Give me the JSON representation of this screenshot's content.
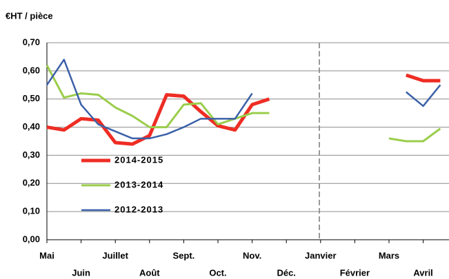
{
  "chart_data": {
    "type": "line",
    "title": "€HT / pièce",
    "categories": [
      "Mai",
      null,
      "Juin",
      null,
      "Juillet",
      null,
      "Août",
      null,
      "Sept.",
      null,
      "Oct.",
      null,
      "Nov.",
      null,
      "Déc.",
      null,
      "Janvier",
      null,
      "Février",
      null,
      "Mars",
      null,
      "Avril",
      null
    ],
    "series": [
      {
        "name": "2014-2015",
        "color": "#ee2d24",
        "values": [
          0.4,
          0.39,
          0.43,
          0.425,
          0.345,
          0.34,
          0.37,
          0.515,
          0.51,
          0.455,
          0.405,
          0.39,
          0.48,
          0.5,
          null,
          null,
          null,
          null,
          null,
          null,
          null,
          0.585,
          0.565,
          0.565
        ]
      },
      {
        "name": "2013-2014",
        "color": "#9acd4a",
        "values": [
          0.62,
          0.505,
          0.52,
          0.515,
          0.47,
          0.44,
          0.4,
          0.4,
          0.48,
          0.485,
          0.41,
          0.43,
          0.45,
          0.45,
          null,
          null,
          null,
          null,
          null,
          null,
          0.36,
          0.35,
          0.35,
          0.395
        ]
      },
      {
        "name": "2012-2013",
        "color": "#3a60a8",
        "values": [
          0.55,
          0.64,
          0.48,
          0.41,
          0.385,
          0.36,
          0.36,
          0.375,
          0.4,
          0.43,
          0.43,
          0.43,
          0.52,
          null,
          null,
          null,
          null,
          null,
          null,
          null,
          null,
          0.525,
          0.475,
          0.55
        ]
      }
    ],
    "ylim": [
      0,
      0.7
    ],
    "yticks": [
      {
        "value": 0,
        "label": "0,00"
      },
      {
        "value": 0.1,
        "label": "0,10"
      },
      {
        "value": 0.2,
        "label": "0,20"
      },
      {
        "value": 0.3,
        "label": "0,30"
      },
      {
        "value": 0.4,
        "label": "0,40"
      },
      {
        "value": 0.5,
        "label": "0,50"
      },
      {
        "value": 0.6,
        "label": "0,60"
      },
      {
        "value": 0.7,
        "label": "0,70"
      }
    ],
    "grid": true
  }
}
